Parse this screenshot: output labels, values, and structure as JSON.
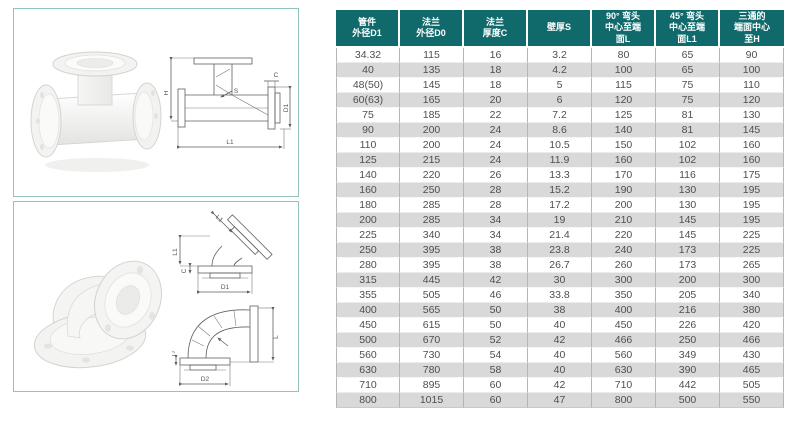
{
  "colors": {
    "header_bg": "#10696b",
    "header_text": "#ffffff",
    "row_stripe": "#d9d9d9",
    "body_text": "#4f4f4f",
    "panel_border": "#93c2c0"
  },
  "table": {
    "headers": [
      "管件\n外径D1",
      "法兰\n外径D0",
      "法兰\n厚度C",
      "壁厚S",
      "90° 弯头\n中心至端\n面L",
      "45° 弯头\n中心至端\n面L1",
      "三通的\n端面中心\n至H"
    ],
    "rows": [
      [
        "34.32",
        "115",
        "16",
        "3.2",
        "80",
        "65",
        "90"
      ],
      [
        "40",
        "135",
        "18",
        "4.2",
        "100",
        "65",
        "100"
      ],
      [
        "48(50)",
        "145",
        "18",
        "5",
        "115",
        "75",
        "110"
      ],
      [
        "60(63)",
        "165",
        "20",
        "6",
        "120",
        "75",
        "120"
      ],
      [
        "75",
        "185",
        "22",
        "7.2",
        "125",
        "81",
        "130"
      ],
      [
        "90",
        "200",
        "24",
        "8.6",
        "140",
        "81",
        "145"
      ],
      [
        "110",
        "200",
        "24",
        "10.5",
        "150",
        "102",
        "160"
      ],
      [
        "125",
        "215",
        "24",
        "11.9",
        "160",
        "102",
        "160"
      ],
      [
        "140",
        "220",
        "26",
        "13.3",
        "170",
        "116",
        "175"
      ],
      [
        "160",
        "250",
        "28",
        "15.2",
        "190",
        "130",
        "195"
      ],
      [
        "180",
        "285",
        "28",
        "17.2",
        "200",
        "130",
        "195"
      ],
      [
        "200",
        "285",
        "34",
        "19",
        "210",
        "145",
        "195"
      ],
      [
        "225",
        "340",
        "34",
        "21.4",
        "220",
        "145",
        "225"
      ],
      [
        "250",
        "395",
        "38",
        "23.8",
        "240",
        "173",
        "225"
      ],
      [
        "280",
        "395",
        "38",
        "26.7",
        "260",
        "173",
        "265"
      ],
      [
        "315",
        "445",
        "42",
        "30",
        "300",
        "200",
        "300"
      ],
      [
        "355",
        "505",
        "46",
        "33.8",
        "350",
        "205",
        "340"
      ],
      [
        "400",
        "565",
        "50",
        "38",
        "400",
        "216",
        "380"
      ],
      [
        "450",
        "615",
        "50",
        "40",
        "450",
        "226",
        "420"
      ],
      [
        "500",
        "670",
        "52",
        "42",
        "466",
        "250",
        "466"
      ],
      [
        "560",
        "730",
        "54",
        "40",
        "560",
        "349",
        "430"
      ],
      [
        "630",
        "780",
        "58",
        "40",
        "630",
        "390",
        "465"
      ],
      [
        "710",
        "895",
        "60",
        "42",
        "710",
        "442",
        "505"
      ],
      [
        "800",
        "1015",
        "60",
        "47",
        "800",
        "500",
        "550"
      ]
    ]
  },
  "tee_drawing": {
    "h": "H",
    "c": "C",
    "s": "S",
    "l1": "L1",
    "d1": "D1"
  },
  "elbow45_drawing": {
    "l1_incline": "L1",
    "l1_vertical": "L1",
    "c": "C",
    "d1": "D1"
  },
  "elbow90_drawing": {
    "l": "L",
    "c": "C",
    "d2": "D2"
  }
}
